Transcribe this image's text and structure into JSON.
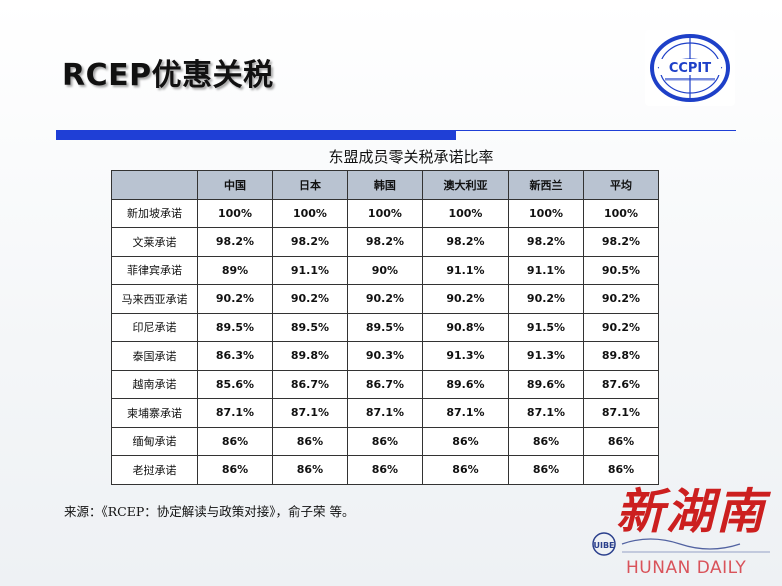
{
  "slide": {
    "title": "RCEP优惠关税",
    "table_title": "东盟成员零关税承诺比率",
    "source": "来源：《RCEP：协定解读与政策对接》，俞子荣 等。"
  },
  "logo": {
    "text": "CCPIT",
    "color": "#1e40c8"
  },
  "table": {
    "columns": [
      "",
      "中国",
      "日本",
      "韩国",
      "澳大利亚",
      "新西兰",
      "平均"
    ],
    "rows": [
      {
        "label": "新加坡承诺",
        "values": [
          "100%",
          "100%",
          "100%",
          "100%",
          "100%",
          "100%"
        ]
      },
      {
        "label": "文莱承诺",
        "values": [
          "98.2%",
          "98.2%",
          "98.2%",
          "98.2%",
          "98.2%",
          "98.2%"
        ]
      },
      {
        "label": "菲律宾承诺",
        "values": [
          "89%",
          "91.1%",
          "90%",
          "91.1%",
          "91.1%",
          "90.5%"
        ]
      },
      {
        "label": "马来西亚承诺",
        "values": [
          "90.2%",
          "90.2%",
          "90.2%",
          "90.2%",
          "90.2%",
          "90.2%"
        ]
      },
      {
        "label": "印尼承诺",
        "values": [
          "89.5%",
          "89.5%",
          "89.5%",
          "90.8%",
          "91.5%",
          "90.2%"
        ]
      },
      {
        "label": "泰国承诺",
        "values": [
          "86.3%",
          "89.8%",
          "90.3%",
          "91.3%",
          "91.3%",
          "89.8%"
        ]
      },
      {
        "label": "越南承诺",
        "values": [
          "85.6%",
          "86.7%",
          "86.7%",
          "89.6%",
          "89.6%",
          "87.6%"
        ]
      },
      {
        "label": "柬埔寨承诺",
        "values": [
          "87.1%",
          "87.1%",
          "87.1%",
          "87.1%",
          "87.1%",
          "87.1%"
        ]
      },
      {
        "label": "缅甸承诺",
        "values": [
          "86%",
          "86%",
          "86%",
          "86%",
          "86%",
          "86%"
        ]
      },
      {
        "label": "老挝承诺",
        "values": [
          "86%",
          "86%",
          "86%",
          "86%",
          "86%",
          "86%"
        ]
      }
    ]
  },
  "watermark": {
    "brand_cn": "新湖南",
    "brand_en": "HUNAN DAILY",
    "school_en": "UIBE"
  }
}
